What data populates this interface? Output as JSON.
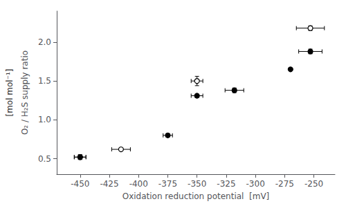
{
  "chart_data": {
    "type": "scatter",
    "xlabel": "Oxidation reduction potential  [mV]",
    "ylabel": "O₂ / H₂S supply ratio",
    "annotations": [
      {
        "text": "[mol mol⁻¹]"
      }
    ],
    "series": [
      {
        "marker": "open circle",
        "color": "#000000",
        "x": [
          -450,
          -415,
          -350,
          -253
        ],
        "values": [
          0.52,
          0.62,
          1.5,
          2.18
        ],
        "xerr": [
          5,
          8,
          5,
          12
        ],
        "yerr": [
          0.03,
          0.01,
          0.06,
          0.03
        ]
      },
      {
        "marker": "circle",
        "color": "#000000",
        "x": [
          -450,
          -375,
          -350,
          -318,
          -270,
          -253
        ],
        "values": [
          0.52,
          0.8,
          1.31,
          1.38,
          1.65,
          1.88
        ],
        "xerr": [
          5,
          4,
          5,
          8,
          0,
          10
        ],
        "yerr": [
          0.03,
          0.02,
          0.02,
          0.03,
          0.0,
          0.03
        ]
      }
    ],
    "xlim": [
      -470,
      -232
    ],
    "ylim": [
      0.3,
      2.4
    ],
    "xticks": [
      -450,
      -425,
      -400,
      -375,
      -350,
      -325,
      -300,
      -275,
      -250
    ],
    "yticks": [
      {
        "value": 0.5,
        "label": "0.5"
      },
      {
        "value": 1,
        "label": "1.0"
      },
      {
        "value": 1.5,
        "label": "1.5"
      },
      {
        "value": 2,
        "label": "2.0"
      }
    ],
    "grid": false
  }
}
